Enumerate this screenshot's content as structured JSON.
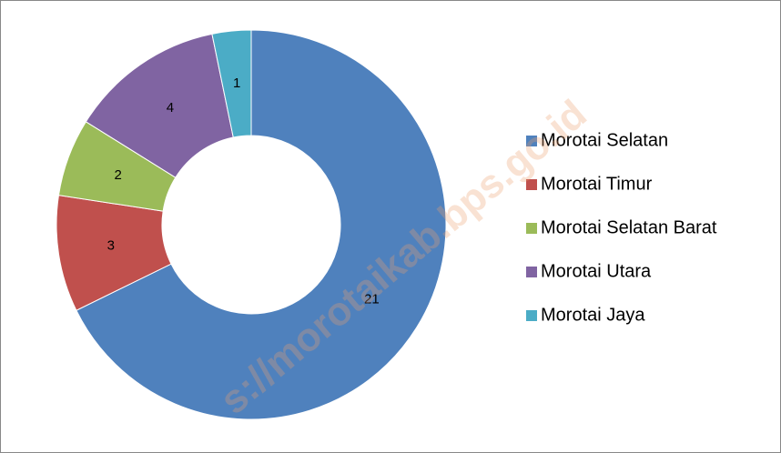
{
  "chart_data": {
    "type": "pie",
    "categories": [
      "Morotai Selatan",
      "Morotai Timur",
      "Morotai Selatan Barat",
      "Morotai Utara",
      "Morotai Jaya"
    ],
    "values": [
      21,
      3,
      2,
      4,
      1
    ],
    "colors": [
      "#4f81bd",
      "#c0504d",
      "#9bbb59",
      "#8064a2",
      "#4bacc6"
    ],
    "donut": true,
    "legend": "right",
    "watermark": "s://morotaikab.bps.go.id"
  }
}
